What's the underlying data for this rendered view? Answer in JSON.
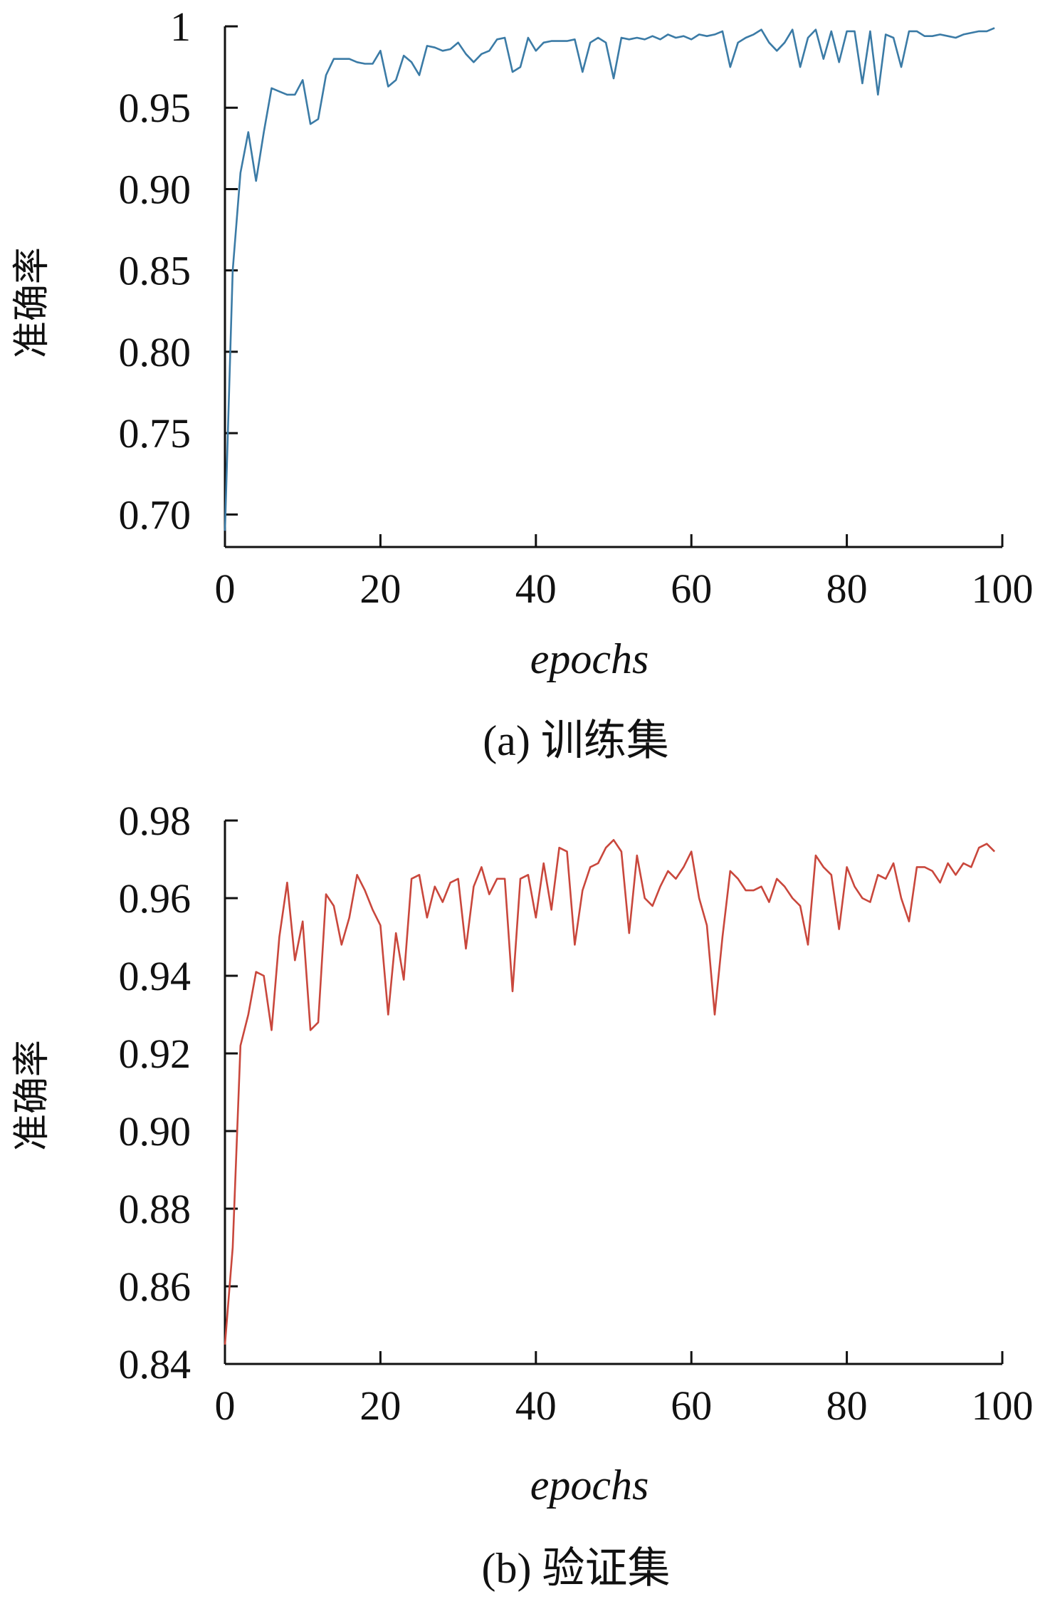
{
  "chart_data": [
    {
      "type": "line",
      "caption": "(a) 训练集",
      "xlabel": "epochs",
      "ylabel": "准确率",
      "xlim": [
        0,
        100
      ],
      "ylim": [
        0.68,
        1.0
      ],
      "x_ticks": [
        0,
        20,
        40,
        60,
        80,
        100
      ],
      "x_tick_labels": [
        "0",
        "20",
        "40",
        "60",
        "80",
        "100"
      ],
      "y_ticks": [
        0.7,
        0.75,
        0.8,
        0.85,
        0.9,
        0.95,
        1.0
      ],
      "y_tick_labels": [
        "0.70",
        "0.75",
        "0.80",
        "0.85",
        "0.90",
        "0.95",
        "1"
      ],
      "color": "#3b7ba6",
      "series": [
        {
          "x": [
            0,
            1,
            2,
            3,
            4,
            5,
            6,
            7,
            8,
            9,
            10,
            11,
            12,
            13,
            14,
            15,
            16,
            17,
            18,
            19,
            20,
            21,
            22,
            23,
            24,
            25,
            26,
            27,
            28,
            29,
            30,
            31,
            32,
            33,
            34,
            35,
            36,
            37,
            38,
            39,
            40,
            41,
            42,
            43,
            44,
            45,
            46,
            47,
            48,
            49,
            50,
            51,
            52,
            53,
            54,
            55,
            56,
            57,
            58,
            59,
            60,
            61,
            62,
            63,
            64,
            65,
            66,
            67,
            68,
            69,
            70,
            71,
            72,
            73,
            74,
            75,
            76,
            77,
            78,
            79,
            80,
            81,
            82,
            83,
            84,
            85,
            86,
            87,
            88,
            89,
            90,
            91,
            92,
            93,
            94,
            95,
            96,
            97,
            98,
            99
          ],
          "values": [
            0.69,
            0.85,
            0.91,
            0.935,
            0.905,
            0.935,
            0.962,
            0.96,
            0.958,
            0.958,
            0.967,
            0.94,
            0.943,
            0.97,
            0.98,
            0.98,
            0.98,
            0.978,
            0.977,
            0.977,
            0.985,
            0.963,
            0.967,
            0.982,
            0.978,
            0.97,
            0.988,
            0.987,
            0.985,
            0.986,
            0.99,
            0.983,
            0.978,
            0.983,
            0.985,
            0.992,
            0.993,
            0.972,
            0.975,
            0.993,
            0.985,
            0.99,
            0.991,
            0.991,
            0.991,
            0.992,
            0.972,
            0.99,
            0.993,
            0.99,
            0.968,
            0.993,
            0.992,
            0.993,
            0.992,
            0.994,
            0.992,
            0.995,
            0.993,
            0.994,
            0.992,
            0.995,
            0.994,
            0.995,
            0.997,
            0.975,
            0.99,
            0.993,
            0.995,
            0.998,
            0.99,
            0.985,
            0.99,
            0.998,
            0.975,
            0.993,
            0.998,
            0.98,
            0.997,
            0.978,
            0.997,
            0.997,
            0.965,
            0.997,
            0.958,
            0.995,
            0.993,
            0.975,
            0.997,
            0.997,
            0.994,
            0.994,
            0.995,
            0.994,
            0.993,
            0.995,
            0.996,
            0.997,
            0.997,
            0.999
          ]
        }
      ]
    },
    {
      "type": "line",
      "caption": "(b) 验证集",
      "xlabel": "epochs",
      "ylabel": "准确率",
      "xlim": [
        0,
        100
      ],
      "ylim": [
        0.84,
        0.98
      ],
      "x_ticks": [
        0,
        20,
        40,
        60,
        80,
        100
      ],
      "x_tick_labels": [
        "0",
        "20",
        "40",
        "60",
        "80",
        "100"
      ],
      "y_ticks": [
        0.84,
        0.86,
        0.88,
        0.9,
        0.92,
        0.94,
        0.96,
        0.98
      ],
      "y_tick_labels": [
        "0.84",
        "0.86",
        "0.88",
        "0.90",
        "0.92",
        "0.94",
        "0.96",
        "0.98"
      ],
      "color": "#c9473c",
      "series": [
        {
          "x": [
            0,
            1,
            2,
            3,
            4,
            5,
            6,
            7,
            8,
            9,
            10,
            11,
            12,
            13,
            14,
            15,
            16,
            17,
            18,
            19,
            20,
            21,
            22,
            23,
            24,
            25,
            26,
            27,
            28,
            29,
            30,
            31,
            32,
            33,
            34,
            35,
            36,
            37,
            38,
            39,
            40,
            41,
            42,
            43,
            44,
            45,
            46,
            47,
            48,
            49,
            50,
            51,
            52,
            53,
            54,
            55,
            56,
            57,
            58,
            59,
            60,
            61,
            62,
            63,
            64,
            65,
            66,
            67,
            68,
            69,
            70,
            71,
            72,
            73,
            74,
            75,
            76,
            77,
            78,
            79,
            80,
            81,
            82,
            83,
            84,
            85,
            86,
            87,
            88,
            89,
            90,
            91,
            92,
            93,
            94,
            95,
            96,
            97,
            98,
            99
          ],
          "values": [
            0.845,
            0.87,
            0.922,
            0.93,
            0.941,
            0.94,
            0.926,
            0.95,
            0.964,
            0.944,
            0.954,
            0.926,
            0.928,
            0.961,
            0.958,
            0.948,
            0.955,
            0.966,
            0.962,
            0.957,
            0.953,
            0.93,
            0.951,
            0.939,
            0.965,
            0.966,
            0.955,
            0.963,
            0.959,
            0.964,
            0.965,
            0.947,
            0.963,
            0.968,
            0.961,
            0.965,
            0.965,
            0.936,
            0.965,
            0.966,
            0.955,
            0.969,
            0.957,
            0.973,
            0.972,
            0.948,
            0.962,
            0.968,
            0.969,
            0.973,
            0.975,
            0.972,
            0.951,
            0.971,
            0.96,
            0.958,
            0.963,
            0.967,
            0.965,
            0.968,
            0.972,
            0.96,
            0.953,
            0.93,
            0.95,
            0.967,
            0.965,
            0.962,
            0.962,
            0.963,
            0.959,
            0.965,
            0.963,
            0.96,
            0.958,
            0.948,
            0.971,
            0.968,
            0.966,
            0.952,
            0.968,
            0.963,
            0.96,
            0.959,
            0.966,
            0.965,
            0.969,
            0.96,
            0.954,
            0.968,
            0.968,
            0.967,
            0.964,
            0.969,
            0.966,
            0.969,
            0.968,
            0.973,
            0.974,
            0.972
          ]
        }
      ]
    }
  ]
}
